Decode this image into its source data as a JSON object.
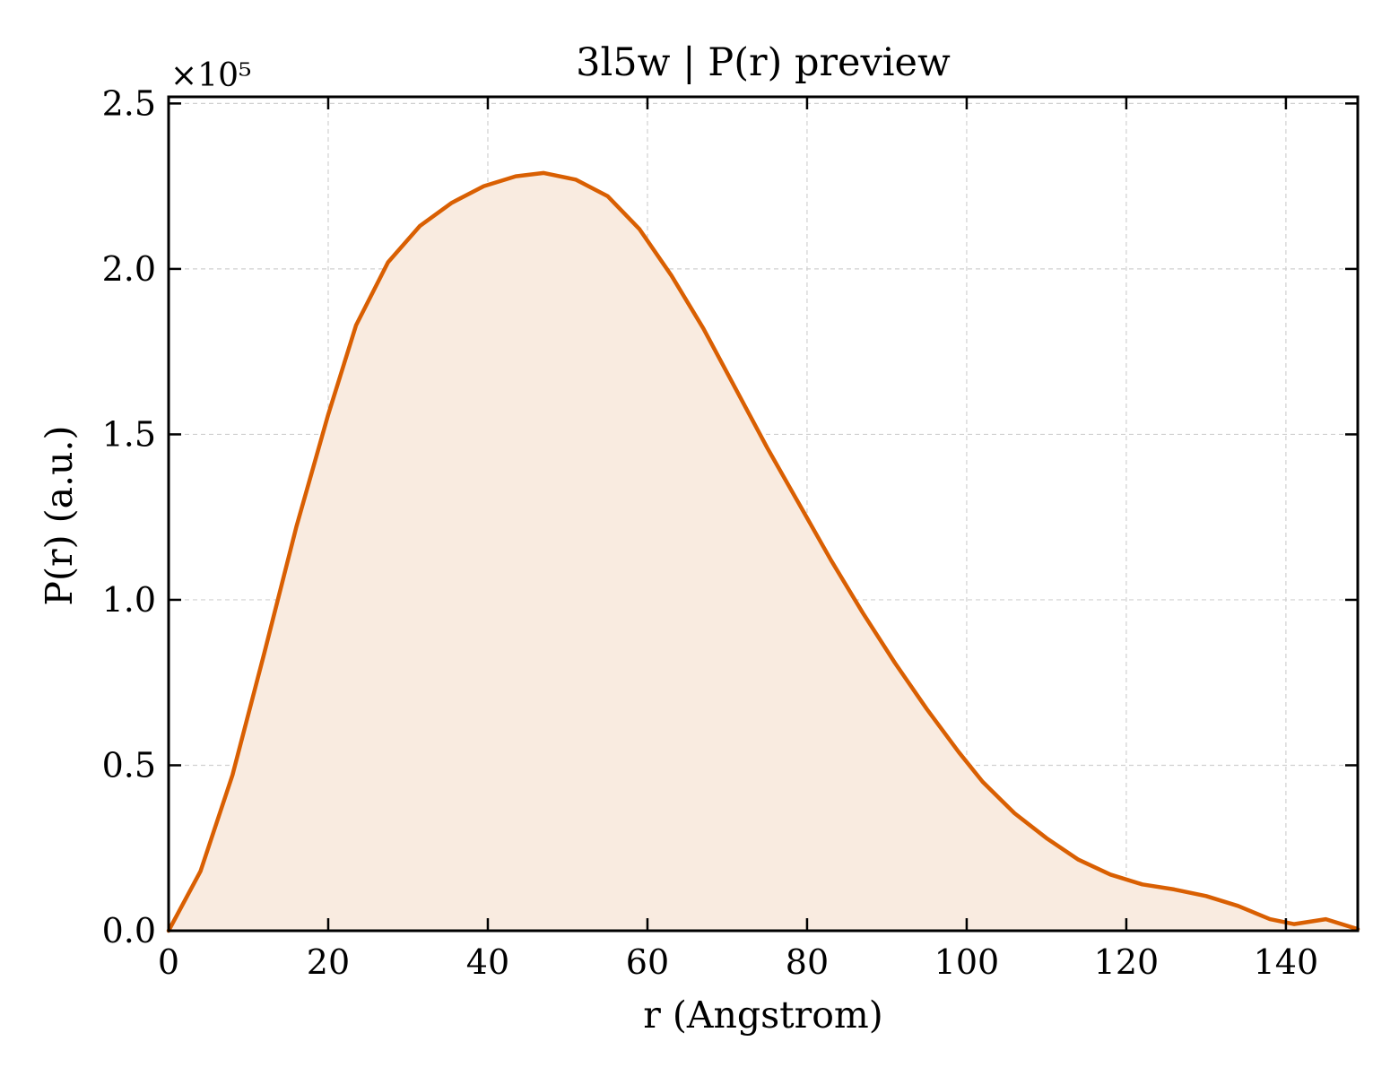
{
  "chart_data": {
    "type": "area",
    "title": "3l5w | P(r) preview",
    "xlabel": "r (Angstrom)",
    "ylabel": "P(r) (a.u.)",
    "y_multiplier": "×10⁵",
    "xlim": [
      0,
      149
    ],
    "ylim": [
      0,
      2.52
    ],
    "x_ticks": [
      0,
      20,
      40,
      60,
      80,
      100,
      120,
      140
    ],
    "x_tick_labels": [
      "0",
      "20",
      "40",
      "60",
      "80",
      "100",
      "120",
      "140"
    ],
    "y_ticks": [
      0,
      0.5,
      1.0,
      1.5,
      2.0,
      2.5
    ],
    "y_tick_labels": [
      "0.0",
      "0.5",
      "1.0",
      "1.5",
      "2.0",
      "2.5"
    ],
    "grid": true,
    "line_color": "#d95f02",
    "fill_color": "#f9ebe0",
    "series": [
      {
        "x": [
          0,
          4,
          8,
          12,
          16,
          20,
          23.5,
          27.5,
          31.5,
          35.5,
          39.5,
          43.5,
          47,
          51,
          55,
          59,
          63,
          67,
          71,
          75,
          79,
          83,
          87,
          91,
          95,
          99,
          102,
          106,
          110,
          114,
          118,
          122,
          126,
          130,
          134,
          138,
          141,
          145,
          149
        ],
        "y": [
          0.0,
          0.18,
          0.47,
          0.84,
          1.22,
          1.56,
          1.83,
          2.02,
          2.13,
          2.2,
          2.25,
          2.28,
          2.29,
          2.27,
          2.22,
          2.12,
          1.98,
          1.82,
          1.64,
          1.46,
          1.29,
          1.12,
          0.96,
          0.81,
          0.67,
          0.54,
          0.45,
          0.355,
          0.28,
          0.215,
          0.17,
          0.14,
          0.125,
          0.105,
          0.075,
          0.035,
          0.02,
          0.035,
          0.005
        ]
      }
    ]
  }
}
